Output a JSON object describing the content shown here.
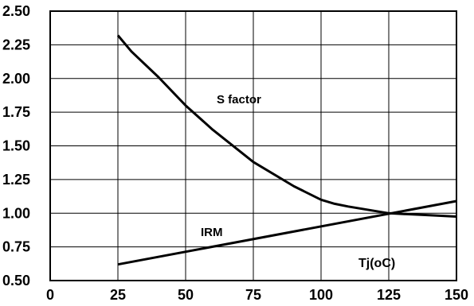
{
  "chart_data": {
    "type": "line",
    "x_ticks": [
      "0",
      "25",
      "50",
      "75",
      "100",
      "125",
      "150"
    ],
    "y_ticks": [
      "0.50",
      "0.75",
      "1.00",
      "1.25",
      "1.50",
      "1.75",
      "2.00",
      "2.25",
      "2.50"
    ],
    "xlabel": "Tj(oC)",
    "xlim": [
      0,
      150
    ],
    "ylim": [
      0.5,
      2.5
    ],
    "grid": true,
    "series": [
      {
        "name": "S factor",
        "x": [
          25,
          30,
          40,
          50,
          60,
          75,
          90,
          100,
          105,
          110,
          125,
          140,
          150
        ],
        "y": [
          2.32,
          2.2,
          2.01,
          1.8,
          1.62,
          1.38,
          1.2,
          1.1,
          1.07,
          1.05,
          1.0,
          0.985,
          0.975
        ]
      },
      {
        "name": "IRM",
        "x": [
          25,
          150
        ],
        "y": [
          0.62,
          1.09
        ]
      }
    ]
  }
}
